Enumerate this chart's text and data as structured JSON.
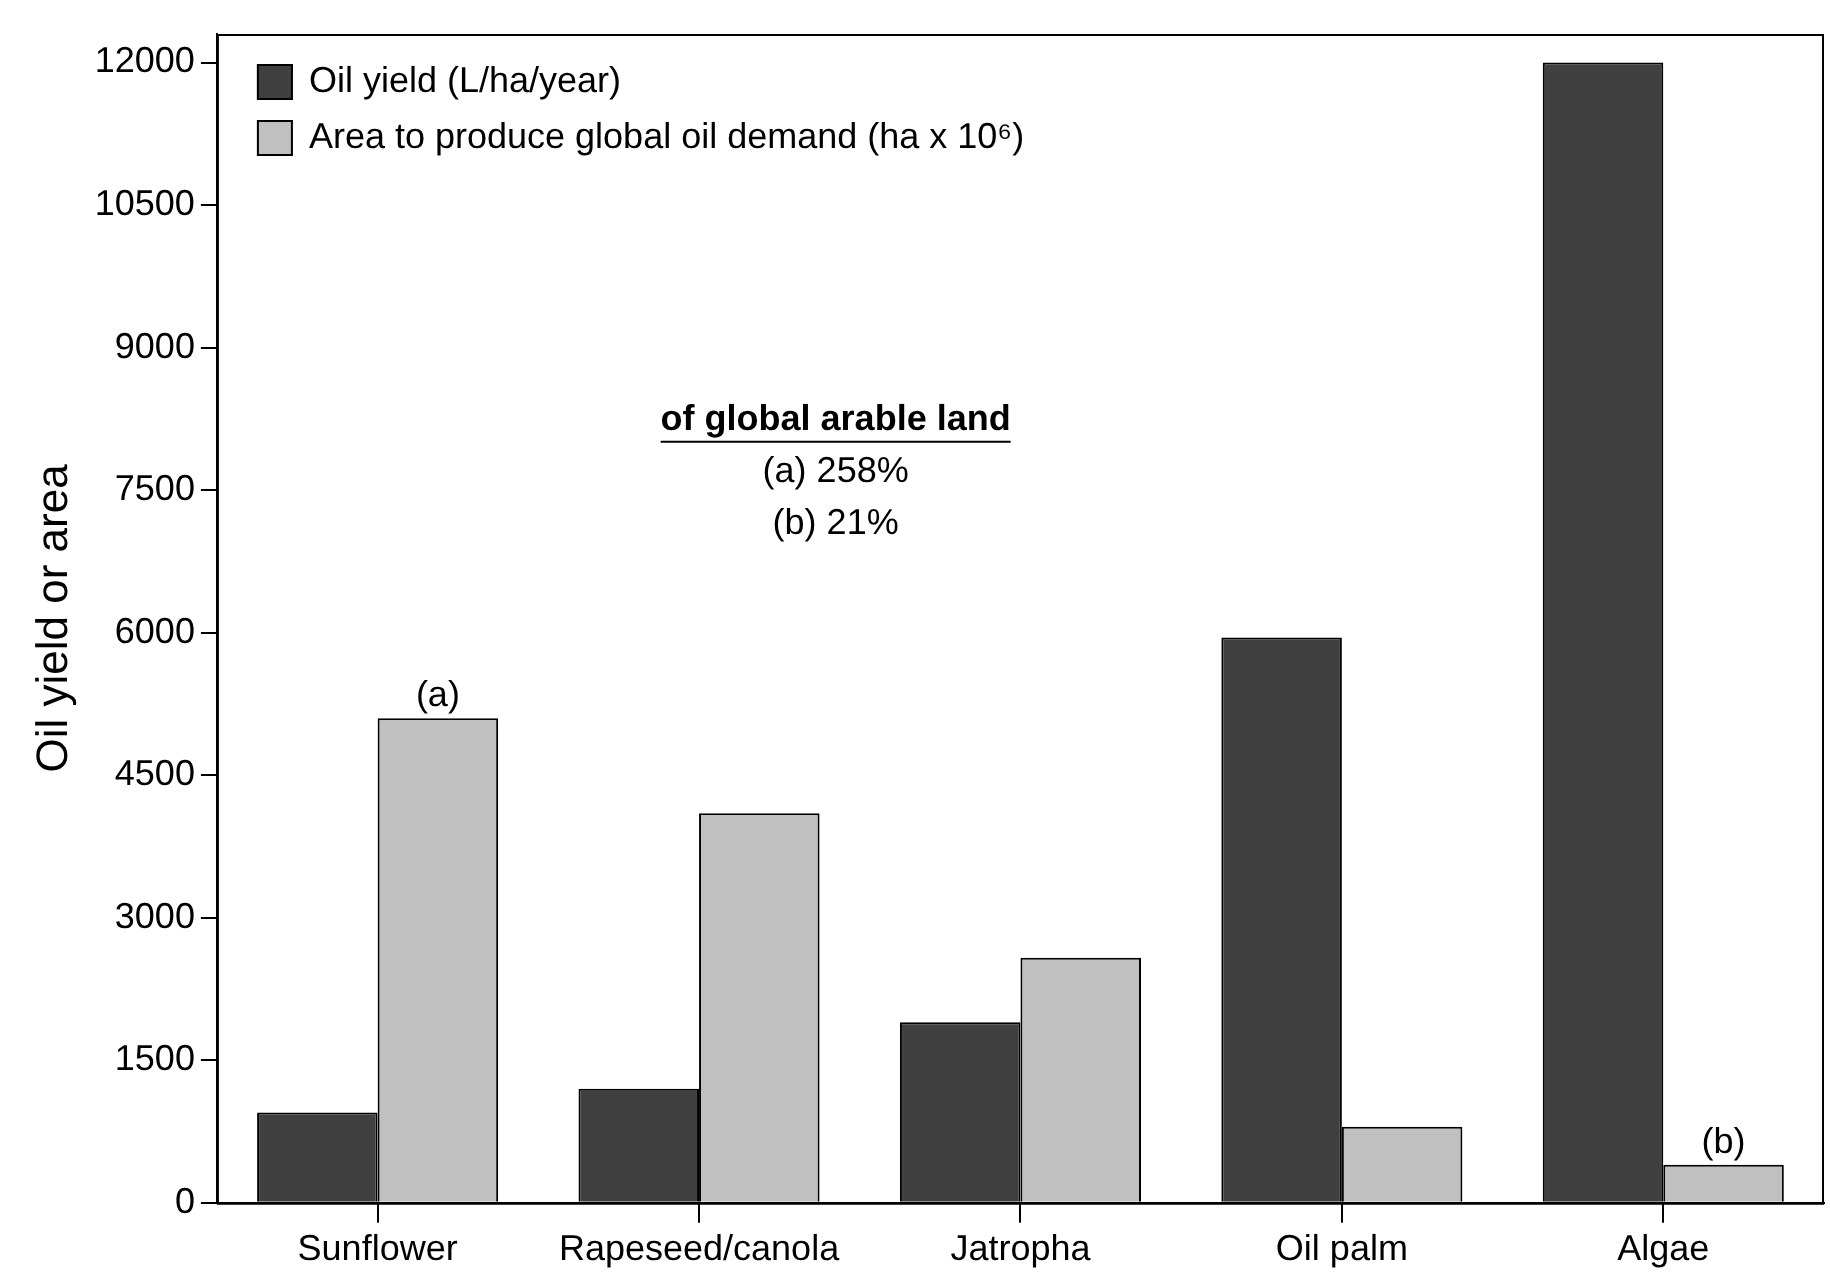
{
  "chart_data": {
    "type": "bar",
    "ylabel": "Oil yield or area",
    "categories": [
      "Sunflower",
      "Rapeseed/canola",
      "Jatropha",
      "Oil palm",
      "Algae"
    ],
    "series": [
      {
        "name": "Oil yield (L/ha/year)",
        "color": "#404040",
        "values": [
          950,
          1200,
          1900,
          5950,
          12000
        ]
      },
      {
        "name": "Area to produce global oil demand (ha x 10⁶)",
        "color": "#c0c0c0",
        "values": [
          5100,
          4100,
          2580,
          800,
          400
        ]
      }
    ],
    "ylim": [
      0,
      12300
    ],
    "yticks": [
      0,
      1500,
      3000,
      4500,
      6000,
      7500,
      9000,
      10500,
      12000
    ],
    "grid": false,
    "legend": "top left",
    "annotations": [
      {
        "text": "(a)",
        "x": "Sunflower",
        "y": 5100
      },
      {
        "text": "(b)",
        "x": "Algae",
        "y": 400
      },
      "of global arable land",
      "(a) 258%",
      "(b) 21%"
    ]
  }
}
